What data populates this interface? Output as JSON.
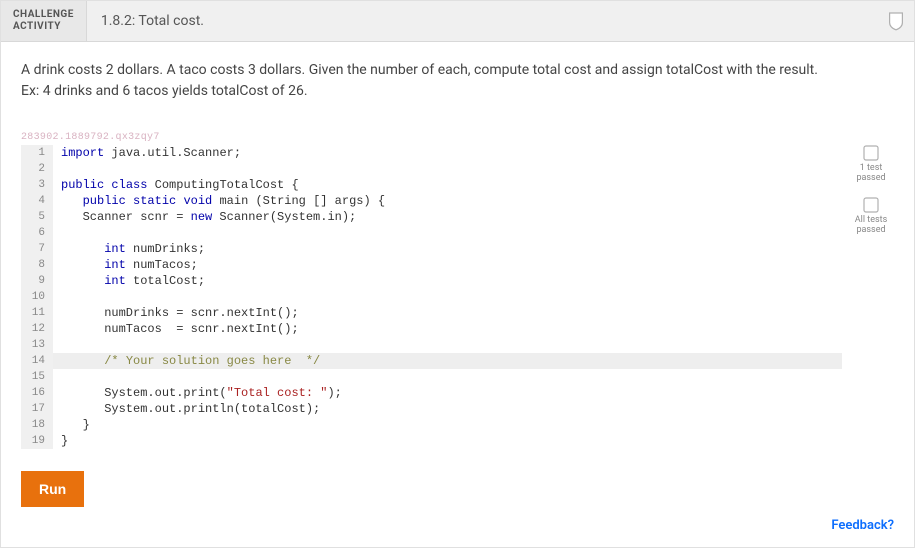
{
  "header": {
    "label_line1": "CHALLENGE",
    "label_line2": "ACTIVITY",
    "title": "1.8.2: Total cost."
  },
  "prompt": {
    "line1": "A drink costs 2 dollars. A taco costs 3 dollars. Given the number of each, compute total cost and assign totalCost with the result.",
    "line2": "Ex: 4 drinks and 6 tacos yields totalCost of 26."
  },
  "watermark": "283902.1889792.qx3zqy7",
  "code": {
    "highlight_line": 14,
    "lines": [
      {
        "n": 1,
        "tokens": [
          {
            "t": "import",
            "c": "kw"
          },
          {
            "t": " java.util.Scanner;"
          }
        ]
      },
      {
        "n": 2,
        "tokens": []
      },
      {
        "n": 3,
        "tokens": [
          {
            "t": "public",
            "c": "kw"
          },
          {
            "t": " "
          },
          {
            "t": "class",
            "c": "kw"
          },
          {
            "t": " ComputingTotalCost {"
          }
        ]
      },
      {
        "n": 4,
        "tokens": [
          {
            "t": "   "
          },
          {
            "t": "public",
            "c": "kw"
          },
          {
            "t": " "
          },
          {
            "t": "static",
            "c": "kw"
          },
          {
            "t": " "
          },
          {
            "t": "void",
            "c": "type"
          },
          {
            "t": " main (String [] args) {"
          }
        ]
      },
      {
        "n": 5,
        "tokens": [
          {
            "t": "   Scanner scnr = "
          },
          {
            "t": "new",
            "c": "new"
          },
          {
            "t": " Scanner(System.in);"
          }
        ]
      },
      {
        "n": 6,
        "tokens": []
      },
      {
        "n": 7,
        "tokens": [
          {
            "t": "      "
          },
          {
            "t": "int",
            "c": "type"
          },
          {
            "t": " numDrinks;"
          }
        ]
      },
      {
        "n": 8,
        "tokens": [
          {
            "t": "      "
          },
          {
            "t": "int",
            "c": "type"
          },
          {
            "t": " numTacos;"
          }
        ]
      },
      {
        "n": 9,
        "tokens": [
          {
            "t": "      "
          },
          {
            "t": "int",
            "c": "type"
          },
          {
            "t": " totalCost;"
          }
        ]
      },
      {
        "n": 10,
        "tokens": []
      },
      {
        "n": 11,
        "tokens": [
          {
            "t": "      numDrinks = scnr.nextInt();"
          }
        ]
      },
      {
        "n": 12,
        "tokens": [
          {
            "t": "      numTacos  = scnr.nextInt();"
          }
        ]
      },
      {
        "n": 13,
        "tokens": []
      },
      {
        "n": 14,
        "tokens": [
          {
            "t": "      "
          },
          {
            "t": "/* Your solution goes here  */",
            "c": "cmt"
          }
        ]
      },
      {
        "n": 15,
        "tokens": []
      },
      {
        "n": 16,
        "tokens": [
          {
            "t": "      System.out.print("
          },
          {
            "t": "\"Total cost: \"",
            "c": "str"
          },
          {
            "t": ");"
          }
        ]
      },
      {
        "n": 17,
        "tokens": [
          {
            "t": "      System.out.println(totalCost);"
          }
        ]
      },
      {
        "n": 18,
        "tokens": [
          {
            "t": "   }"
          }
        ]
      },
      {
        "n": 19,
        "tokens": [
          {
            "t": "}"
          }
        ]
      }
    ]
  },
  "status": {
    "item1_line1": "1 test",
    "item1_line2": "passed",
    "item2_line1": "All tests",
    "item2_line2": "passed"
  },
  "buttons": {
    "run": "Run"
  },
  "feedback": "Feedback?",
  "colors": {
    "run_bg": "#e8710d",
    "feedback_color": "#0d6efd"
  }
}
